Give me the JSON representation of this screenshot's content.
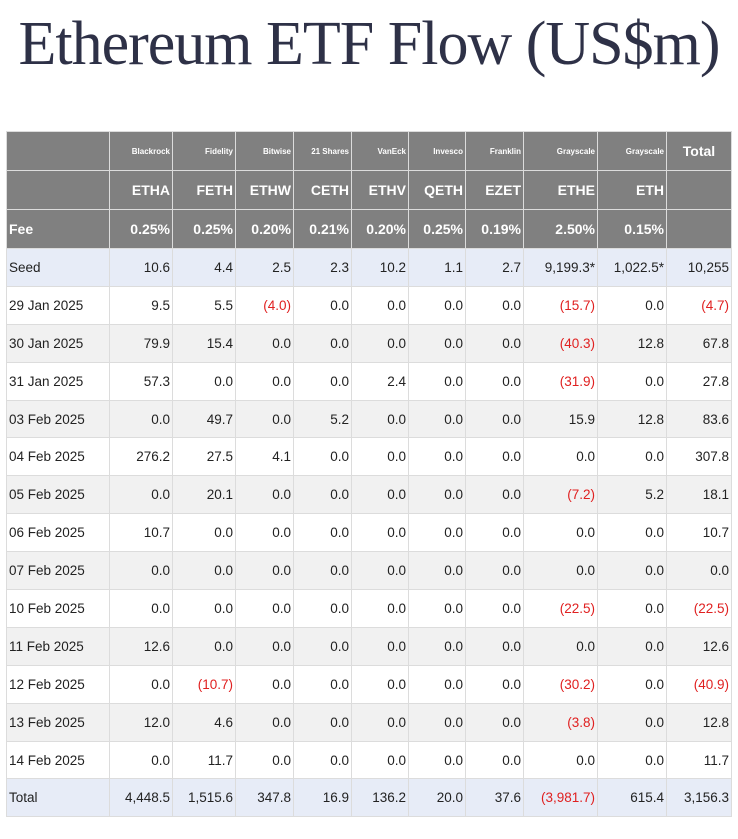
{
  "title": "Ethereum ETF Flow (US$m)",
  "header": {
    "total_label": "Total",
    "fee_label": "Fee",
    "columns": [
      {
        "issuer": "Blackrock",
        "ticker": "ETHA",
        "fee": "0.25%"
      },
      {
        "issuer": "Fidelity",
        "ticker": "FETH",
        "fee": "0.25%"
      },
      {
        "issuer": "Bitwise",
        "ticker": "ETHW",
        "fee": "0.20%"
      },
      {
        "issuer": "21 Shares",
        "ticker": "CETH",
        "fee": "0.21%"
      },
      {
        "issuer": "VanEck",
        "ticker": "ETHV",
        "fee": "0.20%"
      },
      {
        "issuer": "Invesco",
        "ticker": "QETH",
        "fee": "0.25%"
      },
      {
        "issuer": "Franklin",
        "ticker": "EZET",
        "fee": "0.19%"
      },
      {
        "issuer": "Grayscale",
        "ticker": "ETHE",
        "fee": "2.50%"
      },
      {
        "issuer": "Grayscale",
        "ticker": "ETH",
        "fee": "0.15%"
      }
    ]
  },
  "rows": [
    {
      "label": "Seed",
      "values": [
        "10.6",
        "4.4",
        "2.5",
        "2.3",
        "10.2",
        "1.1",
        "2.7",
        "9,199.3*",
        "1,022.5*",
        "10,255"
      ]
    },
    {
      "label": "29 Jan 2025",
      "values": [
        "9.5",
        "5.5",
        "(4.0)",
        "0.0",
        "0.0",
        "0.0",
        "0.0",
        "(15.7)",
        "0.0",
        "(4.7)"
      ]
    },
    {
      "label": "30 Jan 2025",
      "values": [
        "79.9",
        "15.4",
        "0.0",
        "0.0",
        "0.0",
        "0.0",
        "0.0",
        "(40.3)",
        "12.8",
        "67.8"
      ]
    },
    {
      "label": "31 Jan 2025",
      "values": [
        "57.3",
        "0.0",
        "0.0",
        "0.0",
        "2.4",
        "0.0",
        "0.0",
        "(31.9)",
        "0.0",
        "27.8"
      ]
    },
    {
      "label": "03 Feb 2025",
      "values": [
        "0.0",
        "49.7",
        "0.0",
        "5.2",
        "0.0",
        "0.0",
        "0.0",
        "15.9",
        "12.8",
        "83.6"
      ]
    },
    {
      "label": "04 Feb 2025",
      "values": [
        "276.2",
        "27.5",
        "4.1",
        "0.0",
        "0.0",
        "0.0",
        "0.0",
        "0.0",
        "0.0",
        "307.8"
      ]
    },
    {
      "label": "05 Feb 2025",
      "values": [
        "0.0",
        "20.1",
        "0.0",
        "0.0",
        "0.0",
        "0.0",
        "0.0",
        "(7.2)",
        "5.2",
        "18.1"
      ]
    },
    {
      "label": "06 Feb 2025",
      "values": [
        "10.7",
        "0.0",
        "0.0",
        "0.0",
        "0.0",
        "0.0",
        "0.0",
        "0.0",
        "0.0",
        "10.7"
      ]
    },
    {
      "label": "07 Feb 2025",
      "values": [
        "0.0",
        "0.0",
        "0.0",
        "0.0",
        "0.0",
        "0.0",
        "0.0",
        "0.0",
        "0.0",
        "0.0"
      ]
    },
    {
      "label": "10 Feb 2025",
      "values": [
        "0.0",
        "0.0",
        "0.0",
        "0.0",
        "0.0",
        "0.0",
        "0.0",
        "(22.5)",
        "0.0",
        "(22.5)"
      ]
    },
    {
      "label": "11 Feb 2025",
      "values": [
        "12.6",
        "0.0",
        "0.0",
        "0.0",
        "0.0",
        "0.0",
        "0.0",
        "0.0",
        "0.0",
        "12.6"
      ]
    },
    {
      "label": "12 Feb 2025",
      "values": [
        "0.0",
        "(10.7)",
        "0.0",
        "0.0",
        "0.0",
        "0.0",
        "0.0",
        "(30.2)",
        "0.0",
        "(40.9)"
      ]
    },
    {
      "label": "13 Feb 2025",
      "values": [
        "12.0",
        "4.6",
        "0.0",
        "0.0",
        "0.0",
        "0.0",
        "0.0",
        "(3.8)",
        "0.0",
        "12.8"
      ]
    },
    {
      "label": "14 Feb 2025",
      "values": [
        "0.0",
        "11.7",
        "0.0",
        "0.0",
        "0.0",
        "0.0",
        "0.0",
        "0.0",
        "0.0",
        "11.7"
      ]
    }
  ],
  "total_row": {
    "label": "Total",
    "values": [
      "4,448.5",
      "1,515.6",
      "347.8",
      "16.9",
      "136.2",
      "20.0",
      "37.6",
      "(3,981.7)",
      "615.4",
      "3,156.3"
    ]
  },
  "colors": {
    "title": "#2e3147",
    "header_bg": "#808080",
    "negative": "#e02020",
    "highlight_row": "#e7ecf7",
    "stripe_row": "#f1f1f1"
  }
}
